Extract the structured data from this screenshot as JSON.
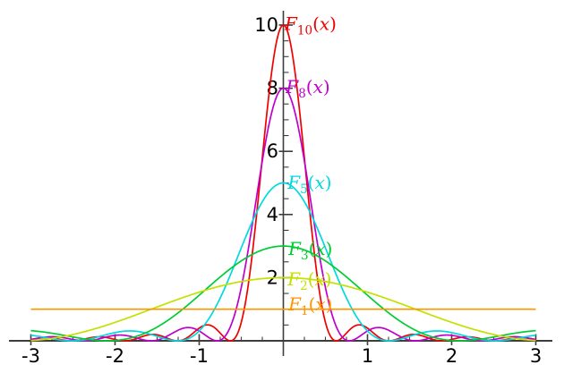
{
  "page": {
    "background": "#ffffff",
    "axis_color": "#3d3d3d"
  },
  "chart_data": {
    "type": "line",
    "title": "",
    "xlabel": "",
    "ylabel": "",
    "xlim": [
      -3,
      3
    ],
    "ylim": [
      0,
      10.45
    ],
    "grid": false,
    "legend_position": "labels-on-curves",
    "function": "fejer_kernel",
    "definition": "F_n(x) = (1/n) * (sin(n*x/2) / sin(x/2))^2",
    "sample_step": 0.005,
    "x_axis": {
      "major_ticks": [
        -3,
        -2,
        -1,
        1,
        2,
        3
      ],
      "major_tick_labels": [
        "-3",
        "-2",
        "-1",
        "1",
        "2",
        "3"
      ],
      "minor_tick_step": 0.25
    },
    "y_axis": {
      "major_ticks": [
        2,
        4,
        6,
        8,
        10
      ],
      "major_tick_labels": [
        "2",
        "4",
        "6",
        "8",
        "10"
      ],
      "minor_tick_step": 0.5
    },
    "series": [
      {
        "name": "F_10",
        "n": 10,
        "color": "#f00000",
        "label": {
          "prefix": "F",
          "sub": "10",
          "suffix_open": "(",
          "var": "x",
          "suffix_close": ")"
        },
        "label_x": 0.016,
        "label_y": 9.85,
        "peak_point": {
          "x": 0,
          "y": 10
        }
      },
      {
        "name": "F_8",
        "n": 8,
        "color": "#bf00cc",
        "label": {
          "prefix": "F",
          "sub": "8",
          "suffix_open": "(",
          "var": "x",
          "suffix_close": ")"
        },
        "label_x": 0.03,
        "label_y": 7.85,
        "peak_point": {
          "x": 0,
          "y": 8
        }
      },
      {
        "name": "F_5",
        "n": 5,
        "color": "#00d9e0",
        "label": {
          "prefix": "F",
          "sub": "5",
          "suffix_open": "(",
          "var": "x",
          "suffix_close": ")"
        },
        "label_x": 0.05,
        "label_y": 4.82,
        "peak_point": {
          "x": 0,
          "y": 5
        }
      },
      {
        "name": "F_3",
        "n": 3,
        "color": "#00cc33",
        "label": {
          "prefix": "F",
          "sub": "3",
          "suffix_open": "(",
          "var": "x",
          "suffix_close": ")"
        },
        "label_x": 0.06,
        "label_y": 2.72,
        "peak_point": {
          "x": 0,
          "y": 3
        }
      },
      {
        "name": "F_2",
        "n": 2,
        "color": "#c4e000",
        "label": {
          "prefix": "F",
          "sub": "2",
          "suffix_open": "(",
          "var": "x",
          "suffix_close": ")"
        },
        "label_x": 0.05,
        "label_y": 1.76,
        "peak_point": {
          "x": 0,
          "y": 2
        }
      },
      {
        "name": "F_1",
        "n": 1,
        "color": "#ff9300",
        "label": {
          "prefix": "F",
          "sub": "1",
          "suffix_open": "(",
          "var": "x",
          "suffix_close": ")"
        },
        "label_x": 0.06,
        "label_y": 0.96,
        "peak_point": {
          "x": 0,
          "y": 1
        }
      }
    ]
  }
}
